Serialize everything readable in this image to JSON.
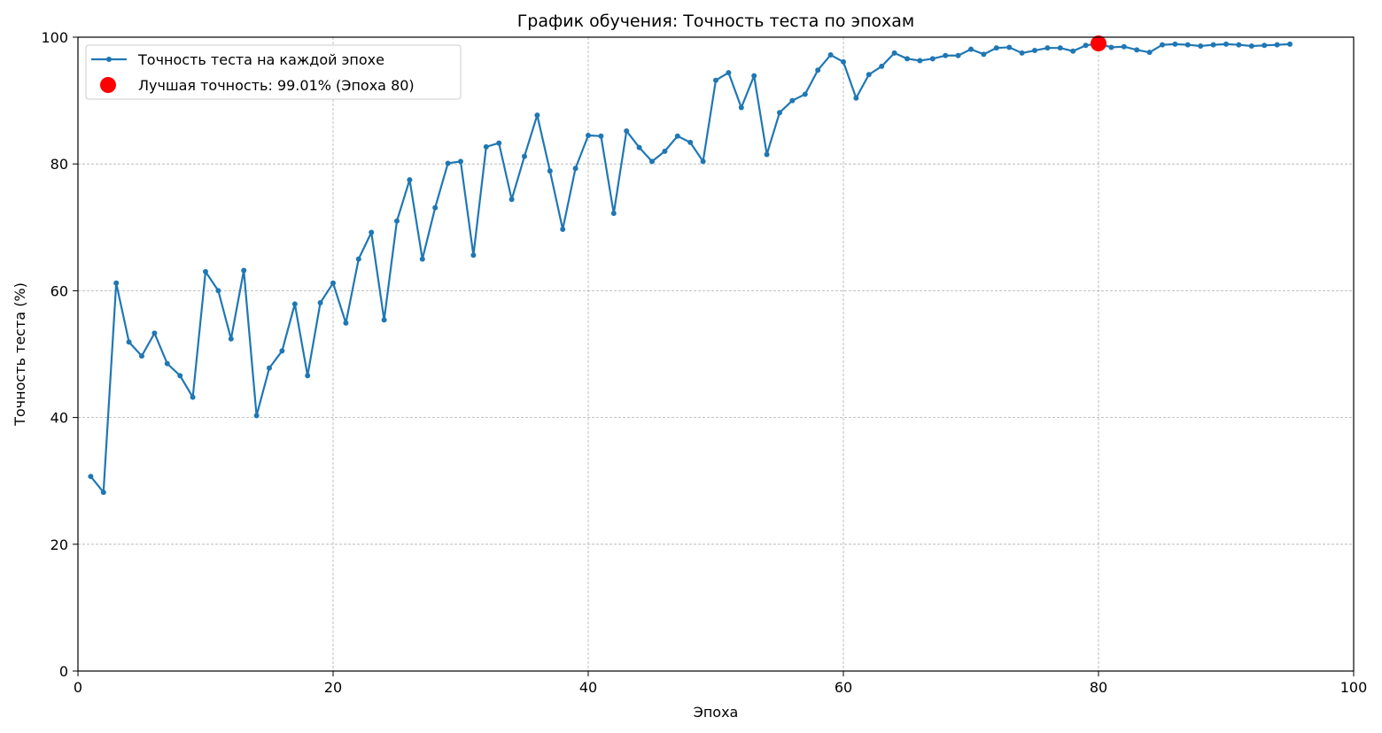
{
  "chart_data": {
    "type": "line",
    "title": "График обучения: Точность теста по эпохам",
    "xlabel": "Эпоха",
    "ylabel": "Точность теста (%)",
    "xlim": [
      0,
      100
    ],
    "ylim": [
      0,
      100
    ],
    "xticks": [
      0,
      20,
      40,
      60,
      80,
      100
    ],
    "yticks": [
      0,
      20,
      40,
      60,
      80,
      100
    ],
    "grid": true,
    "legend_position": "top-left",
    "series": [
      {
        "name": "Точность теста на каждой эпохе",
        "color": "#1f77b4",
        "x": [
          1,
          2,
          3,
          4,
          5,
          6,
          7,
          8,
          9,
          10,
          11,
          12,
          13,
          14,
          15,
          16,
          17,
          18,
          19,
          20,
          21,
          22,
          23,
          24,
          25,
          26,
          27,
          28,
          29,
          30,
          31,
          32,
          33,
          34,
          35,
          36,
          37,
          38,
          39,
          40,
          41,
          42,
          43,
          44,
          45,
          46,
          47,
          48,
          49,
          50,
          51,
          52,
          53,
          54,
          55,
          56,
          57,
          58,
          59,
          60,
          61,
          62,
          63,
          64,
          65,
          66,
          67,
          68,
          69,
          70,
          71,
          72,
          73,
          74,
          75,
          76,
          77,
          78,
          79,
          80,
          81,
          82,
          83,
          84,
          85,
          86,
          87,
          88,
          89,
          90,
          91,
          92,
          93,
          94,
          95
        ],
        "y": [
          30.7,
          28.2,
          61.2,
          51.9,
          49.7,
          53.3,
          48.5,
          46.6,
          43.2,
          63.0,
          60.0,
          52.4,
          63.2,
          40.3,
          47.8,
          50.5,
          57.9,
          46.6,
          58.1,
          61.2,
          54.9,
          65.0,
          69.2,
          55.4,
          71.0,
          77.5,
          65.0,
          73.1,
          80.1,
          80.4,
          65.6,
          82.7,
          83.3,
          74.4,
          81.2,
          87.7,
          78.9,
          69.7,
          79.3,
          84.5,
          84.4,
          72.2,
          85.2,
          82.6,
          80.4,
          82.0,
          84.4,
          83.4,
          80.4,
          93.2,
          94.4,
          88.9,
          93.9,
          81.5,
          88.1,
          90.0,
          91.0,
          94.8,
          97.2,
          96.1,
          90.4,
          94.1,
          95.4,
          97.5,
          96.6,
          96.3,
          96.6,
          97.1,
          97.1,
          98.1,
          97.3,
          98.3,
          98.4,
          97.5,
          97.9,
          98.3,
          98.3,
          97.8,
          98.7,
          99.01,
          98.4,
          98.5,
          98.0,
          97.6,
          98.8,
          98.9,
          98.8,
          98.6,
          98.8,
          98.9,
          98.8,
          98.6,
          98.7,
          98.8,
          98.9
        ]
      }
    ],
    "best": {
      "label": "Лучшая точность: 99.01% (Эпоха 80)",
      "x": 80,
      "y": 99.01,
      "color": "#ff0000"
    }
  }
}
